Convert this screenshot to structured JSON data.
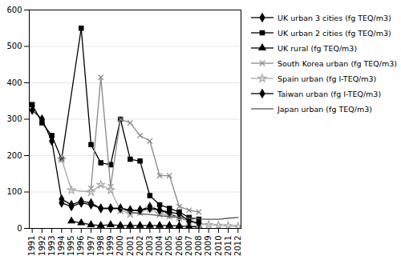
{
  "chart_data": {
    "type": "line",
    "legend": "right",
    "grid": true,
    "xlim": [
      1990.7,
      2012.3
    ],
    "xticks": [
      1991,
      1992,
      1993,
      1994,
      1995,
      1996,
      1997,
      1998,
      1999,
      2000,
      2001,
      2002,
      2003,
      2004,
      2005,
      2006,
      2007,
      2008,
      2009,
      2010,
      2011,
      2012
    ],
    "ylim": [
      0,
      600
    ],
    "yticks": [
      0,
      100,
      200,
      300,
      400,
      500,
      600
    ],
    "series": [
      {
        "name": "UK urban 3 cities (fg TEQ/m3)",
        "color": "#000000",
        "marker": "diamond",
        "x": [
          1991,
          1992,
          1993,
          1994,
          1995,
          1996,
          1997,
          1998,
          1999,
          2000,
          2001,
          2002,
          2003,
          2004,
          2005,
          2006,
          2007,
          2008
        ],
        "values": [
          325,
          300,
          240,
          80,
          65,
          75,
          70,
          55,
          55,
          55,
          50,
          50,
          60,
          50,
          40,
          30,
          20,
          15
        ]
      },
      {
        "name": "UK urban 2 cities (fg TEQ/m3)",
        "color": "#000000",
        "marker": "square",
        "x": [
          1991,
          1992,
          1993,
          1994,
          1996,
          1997,
          1998,
          1999,
          2000,
          2001,
          2002,
          2003,
          2004,
          2005,
          2006,
          2007,
          2008
        ],
        "values": [
          340,
          290,
          255,
          190,
          550,
          230,
          180,
          175,
          300,
          190,
          185,
          90,
          65,
          55,
          45,
          30,
          25
        ]
      },
      {
        "name": "UK rural (fg TEQ/m3)",
        "color": "#000000",
        "marker": "triangle",
        "x": [
          1995,
          1996,
          1997,
          1998,
          1999,
          2000,
          2001,
          2002,
          2003,
          2004,
          2005,
          2006,
          2007,
          2008
        ],
        "values": [
          20,
          15,
          10,
          8,
          10,
          8,
          8,
          8,
          8,
          8,
          8,
          7,
          5,
          5
        ]
      },
      {
        "name": "South Korea urban (fg TEQ/m3)",
        "color": "#888888",
        "marker": "times",
        "x": [
          1997,
          1998,
          1999,
          2000,
          2001,
          2002,
          2003,
          2004,
          2005,
          2006,
          2007,
          2008
        ],
        "values": [
          110,
          415,
          115,
          300,
          290,
          255,
          240,
          145,
          145,
          60,
          50,
          45
        ]
      },
      {
        "name": "Spain urban (fg I-TEQ/m3)",
        "color": "#aaaaaa",
        "marker": "star",
        "x": [
          1994,
          1995,
          1997,
          1998,
          1999,
          2000,
          2001,
          2002,
          2003,
          2004,
          2005,
          2006,
          2007,
          2008,
          2009,
          2010,
          2011,
          2012
        ],
        "values": [
          190,
          105,
          100,
          120,
          105,
          50,
          40,
          45,
          55,
          40,
          35,
          30,
          20,
          10,
          10,
          8,
          7,
          5
        ]
      },
      {
        "name": "Taiwan urban (fg I-TEQ/m3)",
        "color": "#000000",
        "marker": "diamond",
        "x": [
          1994,
          1995,
          1996,
          1997,
          1998,
          1999,
          2000,
          2001,
          2002,
          2003,
          2004,
          2005,
          2006,
          2007,
          2008
        ],
        "values": [
          70,
          60,
          70,
          65,
          55,
          55,
          55,
          50,
          50,
          55,
          50,
          45,
          40,
          20,
          15
        ]
      },
      {
        "name": "Japan urban (fg TEQ/m3)",
        "color": "#555555",
        "marker": "none",
        "x": [
          2000,
          2001,
          2002,
          2003,
          2004,
          2005,
          2006,
          2007,
          2008,
          2009,
          2010,
          2011,
          2012
        ],
        "values": [
          55,
          45,
          40,
          38,
          35,
          32,
          30,
          28,
          26,
          25,
          25,
          28,
          30
        ]
      }
    ]
  }
}
